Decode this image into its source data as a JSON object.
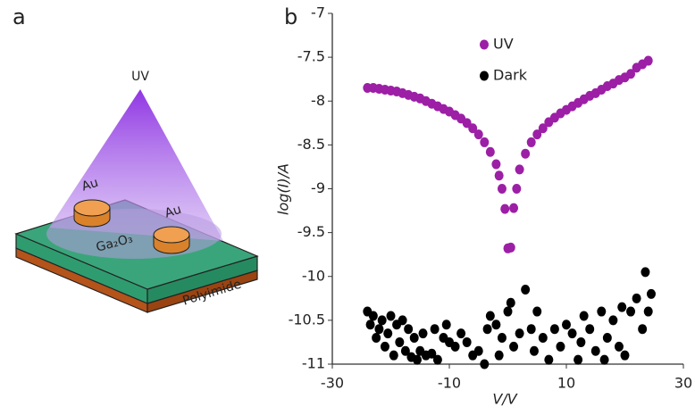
{
  "panel_a": {
    "label": "a",
    "light": "UV",
    "electrode_left": "Au",
    "electrode_right": "Au",
    "film": "Ga₂O₃",
    "substrate": "Polyimide"
  },
  "chart_data": {
    "type": "scatter",
    "panel_label": "b",
    "xlabel": "V/V",
    "ylabel": "log(I)/A",
    "xlim": [
      -30,
      30
    ],
    "xticks": [
      -30,
      -10,
      10,
      30
    ],
    "ylim": [
      -11,
      -7
    ],
    "yticks": [
      -7,
      -7.5,
      -8,
      -8.5,
      -9,
      -9.5,
      -10,
      -10.5,
      -11
    ],
    "legend": "upper left",
    "series": [
      {
        "name": "UV",
        "color": "#9c1fa6",
        "x": [
          -24,
          -23,
          -22,
          -21,
          -20,
          -19,
          -18,
          -17,
          -16,
          -15,
          -14,
          -13,
          -12,
          -11,
          -10,
          -9,
          -8,
          -7,
          -6,
          -5,
          -4,
          -3,
          -2,
          -1.5,
          -1,
          -0.5,
          0,
          0.5,
          1,
          1.5,
          2,
          3,
          4,
          5,
          6,
          7,
          8,
          9,
          10,
          11,
          12,
          13,
          14,
          15,
          16,
          17,
          18,
          19,
          20,
          21,
          22,
          23,
          24
        ],
        "values": [
          -7.85,
          -7.85,
          -7.86,
          -7.87,
          -7.88,
          -7.89,
          -7.91,
          -7.93,
          -7.95,
          -7.97,
          -8.0,
          -8.03,
          -8.06,
          -8.09,
          -8.12,
          -8.16,
          -8.2,
          -8.25,
          -8.31,
          -8.38,
          -8.47,
          -8.58,
          -8.72,
          -8.85,
          -9.0,
          -9.23,
          -9.68,
          -9.67,
          -9.22,
          -9.0,
          -8.78,
          -8.6,
          -8.47,
          -8.38,
          -8.31,
          -8.24,
          -8.19,
          -8.14,
          -8.1,
          -8.06,
          -8.02,
          -7.98,
          -7.94,
          -7.91,
          -7.87,
          -7.83,
          -7.8,
          -7.76,
          -7.73,
          -7.69,
          -7.62,
          -7.58,
          -7.54
        ]
      },
      {
        "name": "Dark",
        "color": "#000000",
        "x": [
          -24,
          -23.5,
          -23,
          -22.5,
          -22,
          -21.5,
          -21,
          -20.5,
          -20,
          -19.5,
          -19,
          -18.5,
          -18,
          -17.5,
          -17,
          -16.5,
          -16,
          -15.5,
          -15,
          -14.5,
          -14,
          -13,
          -12.5,
          -12,
          -11,
          -10.5,
          -10,
          -9,
          -8,
          -7,
          -6,
          -5,
          -4,
          -3.5,
          -3,
          -2,
          -1.5,
          -1,
          0,
          0.5,
          1,
          2,
          3,
          4,
          4.5,
          5,
          6,
          7,
          8,
          9,
          10,
          11,
          12,
          12.5,
          13,
          14,
          15,
          16,
          16.5,
          17,
          18,
          19,
          19.5,
          20,
          21,
          22,
          23,
          23.5,
          24,
          24.5
        ],
        "values": [
          -10.4,
          -10.55,
          -10.45,
          -10.7,
          -10.6,
          -10.5,
          -10.8,
          -10.65,
          -10.45,
          -10.9,
          -10.55,
          -10.75,
          -10.5,
          -10.85,
          -10.6,
          -10.92,
          -10.7,
          -10.95,
          -10.85,
          -10.65,
          -10.9,
          -10.88,
          -10.6,
          -10.95,
          -10.7,
          -10.55,
          -10.75,
          -10.8,
          -10.65,
          -10.75,
          -10.9,
          -10.85,
          -11,
          -10.6,
          -10.45,
          -10.55,
          -10.9,
          -10.7,
          -10.4,
          -10.3,
          -10.8,
          -10.65,
          -10.15,
          -10.6,
          -10.85,
          -10.4,
          -10.7,
          -10.95,
          -10.6,
          -10.8,
          -10.55,
          -10.65,
          -10.95,
          -10.75,
          -10.45,
          -10.6,
          -10.85,
          -10.4,
          -10.95,
          -10.7,
          -10.5,
          -10.8,
          -10.35,
          -10.9,
          -10.4,
          -10.25,
          -10.6,
          -9.95,
          -10.4,
          -10.2
        ]
      }
    ]
  }
}
